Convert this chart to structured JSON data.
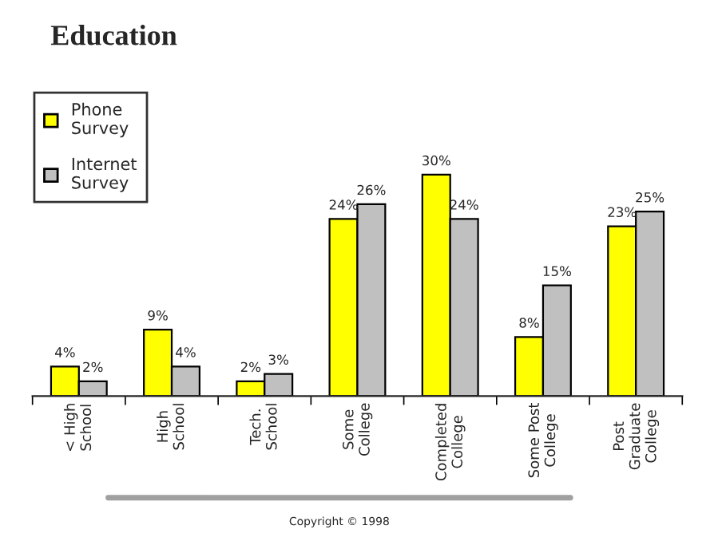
{
  "chart_data": {
    "type": "bar",
    "title": "Education",
    "categories": [
      "< High\nSchool",
      "High\nSchool",
      "Tech.\nSchool",
      "Some\nCollege",
      "Completed\nCollege",
      "Some Post\nCollege",
      "Post\nGraduate\nCollege"
    ],
    "series": [
      {
        "name": "Phone\nSurvey",
        "color": "#ffff00",
        "values": [
          4,
          9,
          2,
          24,
          30,
          8,
          23
        ],
        "value_labels": [
          "4%",
          "9%",
          "2%",
          "24%",
          "30%",
          "8%",
          "23%"
        ]
      },
      {
        "name": "Internet\nSurvey",
        "color": "#c0c0c0",
        "values": [
          2,
          4,
          3,
          26,
          24,
          15,
          25
        ],
        "value_labels": [
          "2%",
          "4%",
          "3%",
          "26%",
          "24%",
          "15%",
          "25%"
        ]
      }
    ],
    "legend": "top left",
    "annotations": [
      "Copyright © 1998"
    ]
  }
}
